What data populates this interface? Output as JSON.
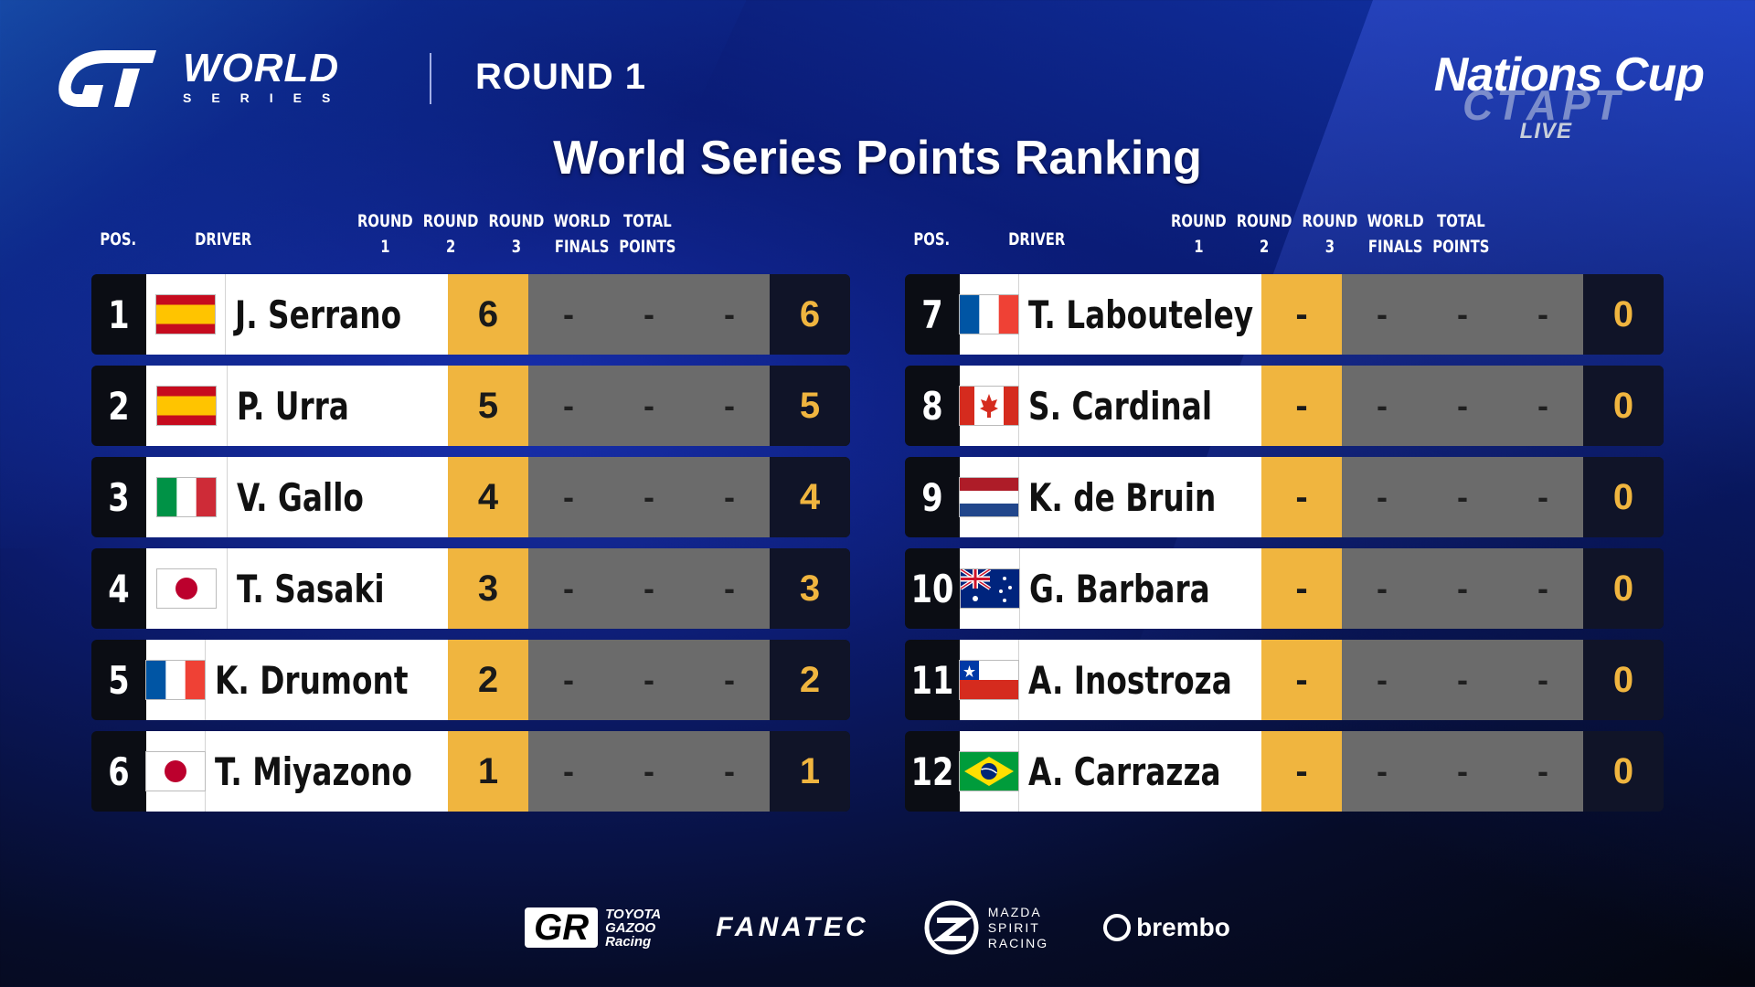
{
  "header": {
    "brand_world": "WORLD",
    "brand_series": "SERIES",
    "round": "ROUND 1",
    "event": "Nations Cup",
    "broadcaster": "СТАРТ",
    "broadcaster_live": "LIVE"
  },
  "title": "World Series Points Ranking",
  "columns": {
    "pos": "POS.",
    "driver": "DRIVER",
    "round1": [
      "ROUND",
      "1"
    ],
    "round2": [
      "ROUND",
      "2"
    ],
    "round3": [
      "ROUND",
      "3"
    ],
    "world_finals": [
      "WORLD",
      "FINALS"
    ],
    "total": [
      "TOTAL",
      "POINTS"
    ]
  },
  "left_table": [
    {
      "pos": "1",
      "flag": "spain-flag",
      "driver": "J. Serrano",
      "r1": "6",
      "r2": "-",
      "r3": "-",
      "wf": "-",
      "total": "6"
    },
    {
      "pos": "2",
      "flag": "spain-flag",
      "driver": "P. Urra",
      "r1": "5",
      "r2": "-",
      "r3": "-",
      "wf": "-",
      "total": "5"
    },
    {
      "pos": "3",
      "flag": "italy-flag",
      "driver": "V. Gallo",
      "r1": "4",
      "r2": "-",
      "r3": "-",
      "wf": "-",
      "total": "4"
    },
    {
      "pos": "4",
      "flag": "japan-flag",
      "driver": "T. Sasaki",
      "r1": "3",
      "r2": "-",
      "r3": "-",
      "wf": "-",
      "total": "3"
    },
    {
      "pos": "5",
      "flag": "france-flag",
      "driver": "K. Drumont",
      "r1": "2",
      "r2": "-",
      "r3": "-",
      "wf": "-",
      "total": "2"
    },
    {
      "pos": "6",
      "flag": "japan-flag",
      "driver": "T. Miyazono",
      "r1": "1",
      "r2": "-",
      "r3": "-",
      "wf": "-",
      "total": "1"
    }
  ],
  "right_table": [
    {
      "pos": "7",
      "flag": "france-flag",
      "driver": "T. Labouteley",
      "r1": "-",
      "r2": "-",
      "r3": "-",
      "wf": "-",
      "total": "0"
    },
    {
      "pos": "8",
      "flag": "canada-flag",
      "driver": "S. Cardinal",
      "r1": "-",
      "r2": "-",
      "r3": "-",
      "wf": "-",
      "total": "0"
    },
    {
      "pos": "9",
      "flag": "netherlands-flag",
      "driver": "K. de Bruin",
      "r1": "-",
      "r2": "-",
      "r3": "-",
      "wf": "-",
      "total": "0"
    },
    {
      "pos": "10",
      "flag": "australia-flag",
      "driver": "G. Barbara",
      "r1": "-",
      "r2": "-",
      "r3": "-",
      "wf": "-",
      "total": "0"
    },
    {
      "pos": "11",
      "flag": "chile-flag",
      "driver": "A. Inostroza",
      "r1": "-",
      "r2": "-",
      "r3": "-",
      "wf": "-",
      "total": "0"
    },
    {
      "pos": "12",
      "flag": "brazil-flag",
      "driver": "A. Carrazza",
      "r1": "-",
      "r2": "-",
      "r3": "-",
      "wf": "-",
      "total": "0"
    }
  ],
  "sponsors": {
    "toyota_mark": "GR",
    "toyota_text": [
      "TOYOTA",
      "GAZOO",
      "Racing"
    ],
    "fanatec": "FANATEC",
    "mazda_text": [
      "MAZDA",
      "SPIRIT",
      "RACING"
    ],
    "brembo": "brembo"
  },
  "colors": {
    "round1_cell": "#f0b53f",
    "empty_cell": "#6b6b6b",
    "total_text": "#f0b53f",
    "total_cell": "#101428"
  }
}
